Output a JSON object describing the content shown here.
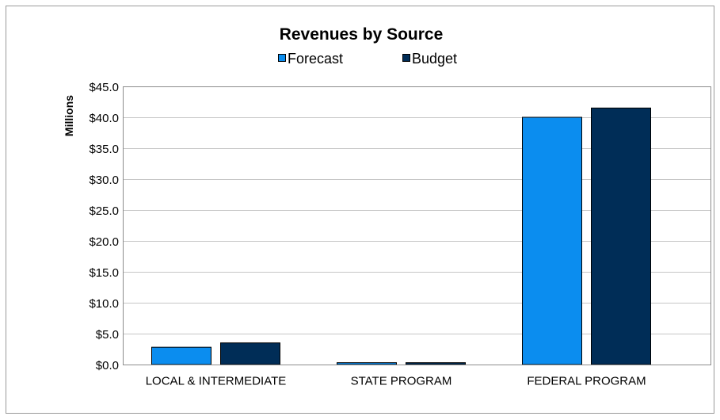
{
  "chart_data": {
    "type": "bar",
    "title": "Revenues by Source",
    "xlabel": "",
    "ylabel": "Millions",
    "categories": [
      "LOCAL & INTERMEDIATE",
      "STATE PROGRAM",
      "FEDERAL PROGRAM"
    ],
    "series": [
      {
        "name": "Forecast",
        "color": "#0B8DEF",
        "values": [
          2.8,
          0.3,
          40.0
        ]
      },
      {
        "name": "Budget",
        "color": "#002D57",
        "values": [
          3.5,
          0.3,
          41.5
        ]
      }
    ],
    "ylim": [
      0,
      45
    ],
    "yticks": [
      0,
      5,
      10,
      15,
      20,
      25,
      30,
      35,
      40,
      45
    ],
    "ytick_labels": [
      "$0.0",
      "$5.0",
      "$10.0",
      "$15.0",
      "$20.0",
      "$25.0",
      "$30.0",
      "$35.0",
      "$40.0",
      "$45.0"
    ],
    "grid": true,
    "legend": "top-center"
  },
  "colors": {
    "gridline": "#C6C6C6",
    "plot_border": "#8C8C8C",
    "chart_border": "#9A9A9A",
    "bar_outline": "#000000"
  }
}
